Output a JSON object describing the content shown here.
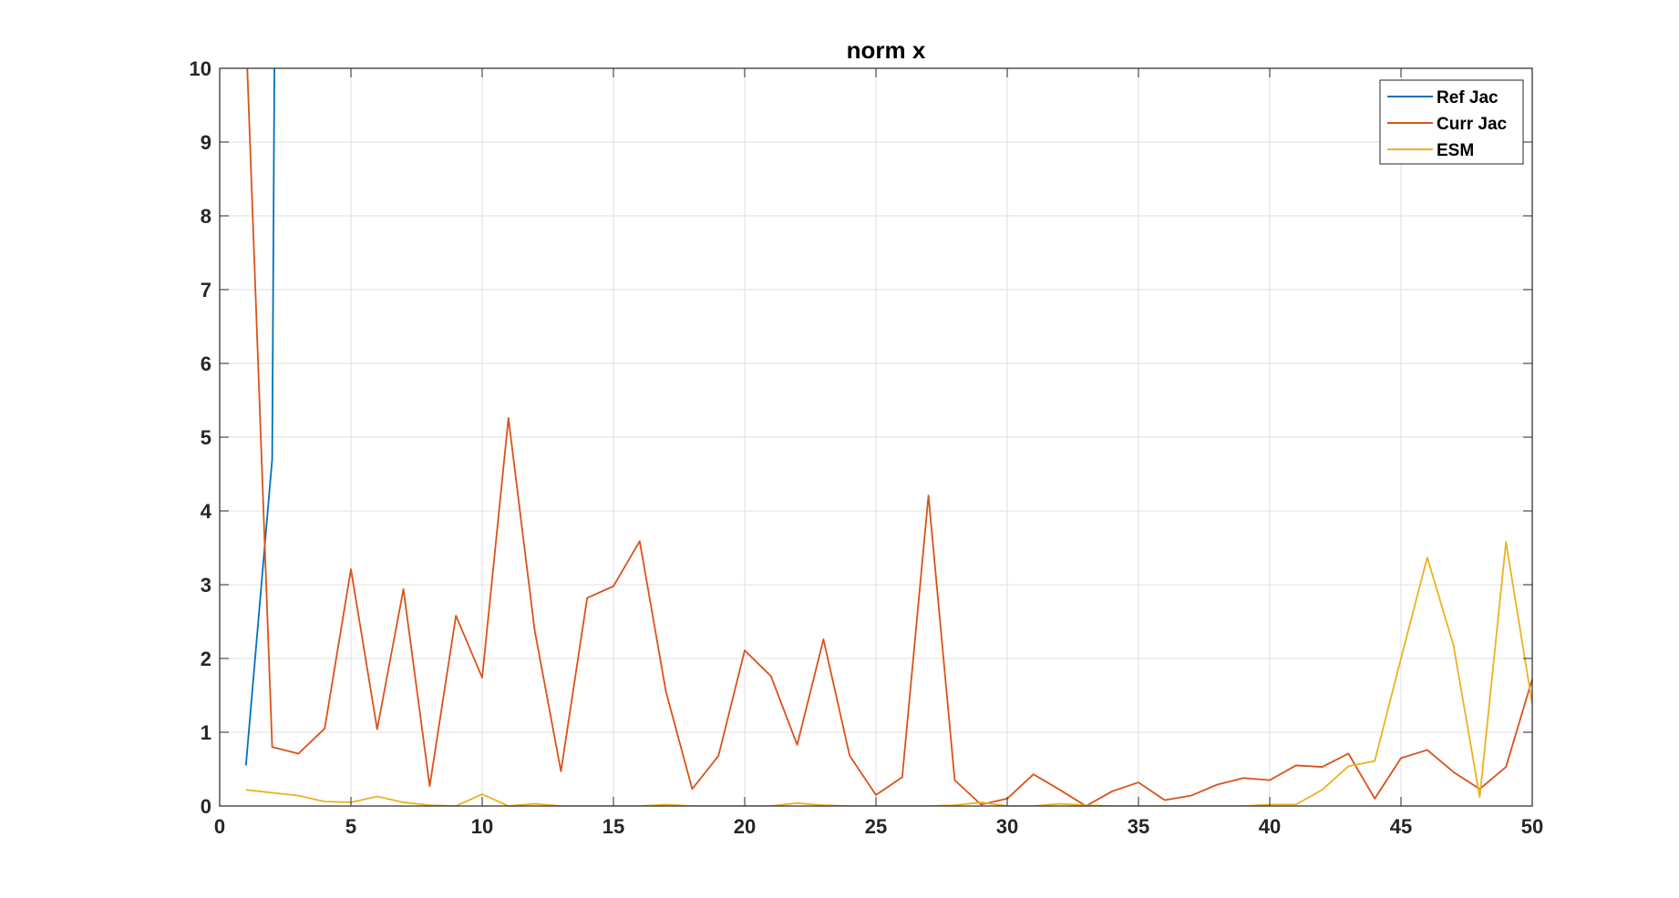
{
  "chart_data": {
    "type": "line",
    "title": "norm x",
    "xlabel": "",
    "ylabel": "",
    "xlim": [
      0,
      50
    ],
    "ylim": [
      0,
      10
    ],
    "xticks": [
      0,
      5,
      10,
      15,
      20,
      25,
      30,
      35,
      40,
      45,
      50
    ],
    "yticks": [
      0,
      1,
      2,
      3,
      4,
      5,
      6,
      7,
      8,
      9,
      10
    ],
    "grid": true,
    "legend_position": "top-right",
    "series": [
      {
        "name": "Ref Jac",
        "color": "#0072bd",
        "x": [
          1,
          2,
          2.1
        ],
        "y": [
          0.55,
          4.7,
          11
        ]
      },
      {
        "name": "Curr Jac",
        "color": "#d95319",
        "x": [
          1,
          2,
          3,
          4,
          5,
          6,
          7,
          8,
          9,
          10,
          11,
          12,
          13,
          14,
          15,
          16,
          17,
          18,
          19,
          20,
          21,
          22,
          23,
          24,
          25,
          26,
          27,
          28,
          29,
          30,
          31,
          32,
          33,
          34,
          35,
          36,
          37,
          38,
          39,
          40,
          41,
          42,
          43,
          44,
          45,
          46,
          47,
          48,
          49,
          50
        ],
        "y": [
          10.5,
          0.8,
          0.71,
          1.05,
          3.21,
          1.04,
          2.94,
          0.27,
          2.58,
          1.74,
          5.26,
          2.38,
          0.47,
          2.82,
          2.98,
          3.59,
          1.55,
          0.23,
          0.68,
          2.11,
          1.76,
          0.83,
          2.26,
          0.68,
          0.15,
          0.39,
          4.21,
          0.35,
          0.02,
          0.1,
          0.43,
          0.22,
          0.0,
          0.2,
          0.32,
          0.08,
          0.14,
          0.29,
          0.38,
          0.35,
          0.55,
          0.53,
          0.71,
          0.1,
          0.65,
          0.76,
          0.46,
          0.23,
          0.53,
          1.72
        ]
      },
      {
        "name": "ESM",
        "color": "#edb120",
        "x": [
          1,
          2,
          3,
          4,
          5,
          6,
          7,
          8,
          9,
          10,
          11,
          12,
          13,
          14,
          15,
          16,
          17,
          18,
          19,
          20,
          21,
          22,
          23,
          24,
          25,
          26,
          27,
          28,
          29,
          30,
          31,
          32,
          33,
          34,
          35,
          36,
          37,
          38,
          39,
          40,
          41,
          42,
          43,
          44,
          45,
          46,
          47,
          48,
          49,
          50
        ],
        "y": [
          0.22,
          0.18,
          0.14,
          0.06,
          0.05,
          0.13,
          0.05,
          0.01,
          0.0,
          0.16,
          0.0,
          0.03,
          0.0,
          0.0,
          0.0,
          0.0,
          0.02,
          0.0,
          0.0,
          0.0,
          0.0,
          0.04,
          0.01,
          0.0,
          0.0,
          0.0,
          0.0,
          0.01,
          0.05,
          0.0,
          0.0,
          0.03,
          0.01,
          0.0,
          0.0,
          0.0,
          0.0,
          0.0,
          0.0,
          0.02,
          0.02,
          0.22,
          0.54,
          0.61,
          2.0,
          3.37,
          2.18,
          0.12,
          3.58,
          1.38
        ]
      }
    ]
  }
}
